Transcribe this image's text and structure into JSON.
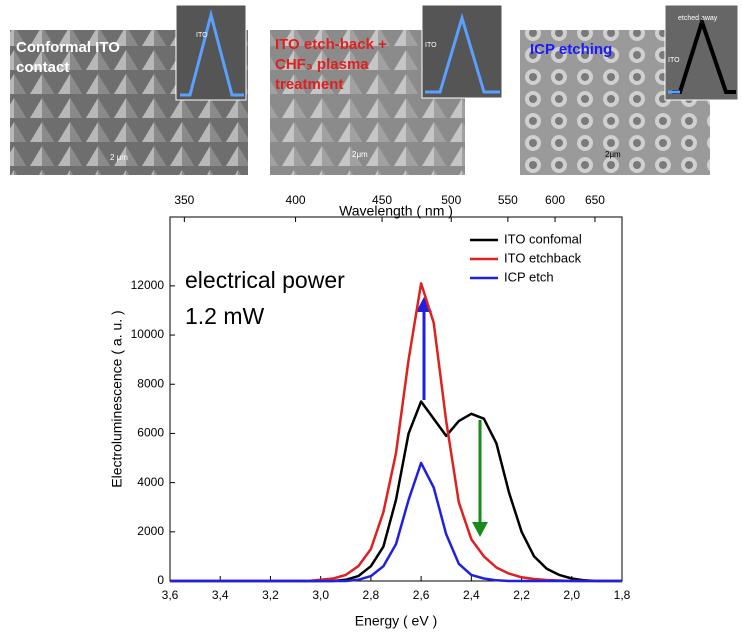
{
  "panels": [
    {
      "label": [
        "Conformal ITO",
        "contact"
      ],
      "inset": "ITO",
      "scale": "2 μm"
    },
    {
      "label": [
        "ITO etch-back +",
        "CHF₃ plasma",
        "treatment"
      ],
      "inset": "ITO",
      "scale": "2μm"
    },
    {
      "label": [
        "ICP etching"
      ],
      "inset": [
        "etched away",
        "ITO"
      ],
      "scale": "2μm"
    }
  ],
  "chart_data": {
    "type": "line",
    "xlabel": "Energy ( eV )",
    "ylabel": "Electroluminescence ( a. u. )",
    "x2label": "Wavelength ( nm )",
    "annotations": [
      "electrical power",
      "1.2 mW"
    ],
    "x": [
      3.6,
      3.55,
      3.5,
      3.45,
      3.4,
      3.35,
      3.3,
      3.25,
      3.2,
      3.15,
      3.1,
      3.05,
      3.0,
      2.95,
      2.9,
      2.85,
      2.8,
      2.75,
      2.7,
      2.65,
      2.6,
      2.55,
      2.5,
      2.45,
      2.4,
      2.35,
      2.3,
      2.25,
      2.2,
      2.15,
      2.1,
      2.05,
      2.0,
      1.95,
      1.9,
      1.85,
      1.8
    ],
    "series": [
      {
        "name": "ITO confomal",
        "color": "#000000",
        "values": [
          0,
          0,
          0,
          0,
          0,
          0,
          0,
          0,
          0,
          0,
          0,
          0,
          0,
          0,
          50,
          200,
          600,
          1400,
          3300,
          6000,
          7300,
          6600,
          5900,
          6500,
          6800,
          6600,
          5600,
          3600,
          2000,
          1000,
          500,
          250,
          100,
          30,
          0,
          0,
          0
        ]
      },
      {
        "name": "ITO etchback",
        "color": "#e02020",
        "values": [
          0,
          0,
          0,
          0,
          0,
          0,
          0,
          0,
          0,
          0,
          0,
          0,
          50,
          100,
          250,
          600,
          1300,
          2800,
          5200,
          9000,
          12100,
          10500,
          6500,
          3200,
          1700,
          1000,
          550,
          300,
          150,
          80,
          40,
          20,
          0,
          0,
          0,
          0,
          0
        ]
      },
      {
        "name": "ICP etch",
        "color": "#2020e0",
        "values": [
          0,
          0,
          0,
          0,
          0,
          0,
          0,
          0,
          0,
          0,
          0,
          0,
          0,
          0,
          0,
          50,
          200,
          600,
          1500,
          3300,
          4800,
          3800,
          1900,
          700,
          250,
          100,
          30,
          0,
          0,
          0,
          0,
          0,
          0,
          0,
          0,
          0,
          0
        ]
      }
    ],
    "xlim": [
      3.6,
      1.8
    ],
    "xticks": [
      {
        "value": 3.6,
        "label": "3,6"
      },
      {
        "value": 3.4,
        "label": "3,4"
      },
      {
        "value": 3.2,
        "label": "3,2"
      },
      {
        "value": 3.0,
        "label": "3,0"
      },
      {
        "value": 2.8,
        "label": "2,8"
      },
      {
        "value": 2.6,
        "label": "2,6"
      },
      {
        "value": 2.4,
        "label": "2,4"
      },
      {
        "value": 2.2,
        "label": "2,2"
      },
      {
        "value": 2.0,
        "label": "2,0"
      },
      {
        "value": 1.8,
        "label": "1,8"
      }
    ],
    "x2ticks": [
      350,
      400,
      450,
      500,
      550,
      600,
      650
    ],
    "ylim": [
      0,
      14800
    ],
    "yticks": [
      0,
      2000,
      4000,
      6000,
      8000,
      10000,
      12000
    ],
    "legend": "upper right"
  }
}
